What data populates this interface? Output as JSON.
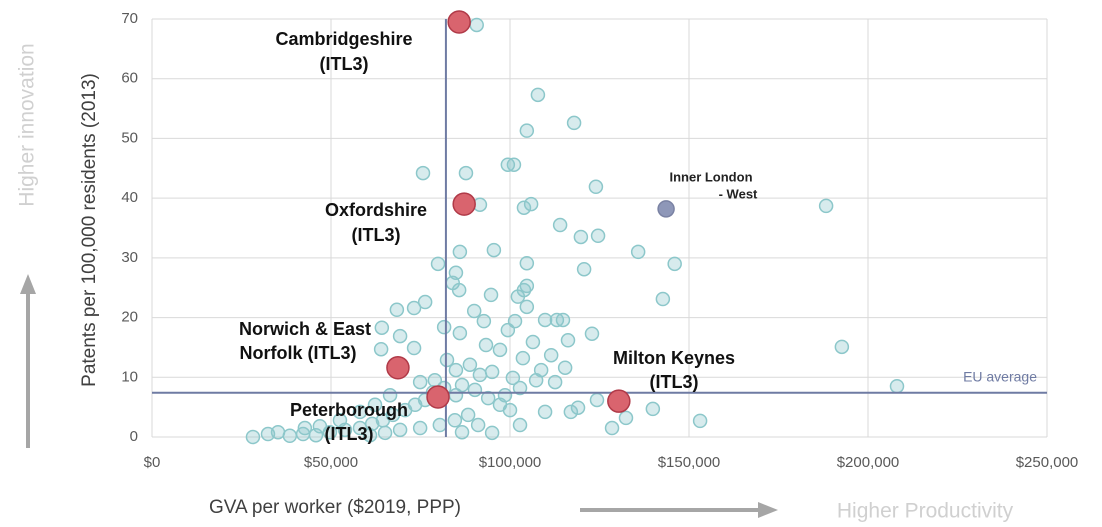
{
  "chart_data": {
    "type": "scatter",
    "x_label": "GVA per worker ($2019, PPP)",
    "y_label": "Patents per 100,000 residents (2013)",
    "x_direction_label": "Higher Productivity",
    "y_direction_label": "Higher innovation",
    "xlim": [
      0,
      250000
    ],
    "ylim": [
      0,
      70
    ],
    "xticks": [
      {
        "value": 0,
        "label": "$0"
      },
      {
        "value": 50000,
        "label": "$50,000"
      },
      {
        "value": 100000,
        "label": "$100,000"
      },
      {
        "value": 150000,
        "label": "$150,000"
      },
      {
        "value": 200000,
        "label": "$200,000"
      },
      {
        "value": 250000,
        "label": "$250,000"
      }
    ],
    "yticks": [
      0,
      10,
      20,
      30,
      40,
      50,
      60,
      70
    ],
    "grid": true,
    "series": [
      {
        "color": "#8cc7ca",
        "x": [
          90700,
          107800,
          117900,
          104700,
          99400,
          101100,
          87700,
          75700,
          124000,
          91600,
          105900,
          103900,
          188300,
          114000,
          124600,
          119800,
          95500,
          86000,
          135800,
          79900,
          104700,
          146000,
          120700,
          84900,
          84000,
          104700,
          85800,
          103900,
          94700,
          102200,
          142700,
          76300,
          73200,
          68400,
          90000,
          104700,
          81600,
          64200,
          92700,
          101400,
          109800,
          113100,
          114800,
          122900,
          99400,
          86000,
          69300,
          73200,
          64000,
          192700,
          116200,
          106400,
          93300,
          97200,
          103600,
          111500,
          115400,
          108700,
          82400,
          88800,
          95000,
          100800,
          107300,
          112600,
          208100,
          124300,
          139900,
          153100,
          128500,
          132400,
          117000,
          119000,
          109800,
          102800,
          95000,
          28200,
          32400,
          35200,
          38500,
          42200,
          45800,
          49700,
          53900,
          58100,
          61500,
          64500,
          67300,
          70700,
          73500,
          76300,
          78500,
          81600,
          84900,
          86600,
          90200,
          93900,
          97200,
          100000,
          88300,
          84600,
          80400,
          74900,
          69300,
          65100,
          60900,
          91100,
          86600,
          98600,
          102800,
          91600,
          84900,
          79000,
          74900,
          66500,
          62300,
          58100,
          52500,
          46900,
          42700
        ],
        "values": [
          69,
          57.3,
          52.6,
          51.3,
          45.6,
          45.6,
          44.2,
          44.2,
          41.9,
          38.9,
          39,
          38.4,
          38.7,
          35.5,
          33.7,
          33.5,
          31.3,
          31,
          31,
          29,
          29.1,
          29,
          28.1,
          27.5,
          25.8,
          25.3,
          24.6,
          24.6,
          23.8,
          23.5,
          23.1,
          22.6,
          21.6,
          21.3,
          21.1,
          21.8,
          18.4,
          18.3,
          19.4,
          19.4,
          19.6,
          19.6,
          19.6,
          17.3,
          17.9,
          17.4,
          16.9,
          14.9,
          14.7,
          15.1,
          16.2,
          15.9,
          15.4,
          14.6,
          13.2,
          13.7,
          11.6,
          11.2,
          12.9,
          12.1,
          10.9,
          9.9,
          9.5,
          9.2,
          8.5,
          6.2,
          4.7,
          2.7,
          1.5,
          3.2,
          4.2,
          4.9,
          4.2,
          2,
          0.7,
          0,
          0.5,
          0.8,
          0.2,
          0.5,
          0.3,
          0.8,
          1.2,
          1.5,
          2.2,
          2.8,
          3.7,
          4.5,
          5.4,
          6.2,
          7.5,
          8.2,
          7,
          8.7,
          7.9,
          6.5,
          5.4,
          4.5,
          3.7,
          2.8,
          2,
          1.5,
          1.2,
          0.7,
          0.3,
          2,
          0.8,
          7,
          8.2,
          10.4,
          11.2,
          9.5,
          9.2,
          7,
          5.4,
          4.2,
          2.8,
          1.8,
          1.5
        ]
      }
    ],
    "highlights": [
      {
        "lines": [
          "Cambridgeshire",
          "(ITL3)"
        ],
        "x": 85800,
        "y": 69.5,
        "color": "#d9646e"
      },
      {
        "lines": [
          "Oxfordshire",
          "(ITL3)"
        ],
        "x": 87200,
        "y": 39,
        "color": "#d9646e"
      },
      {
        "lines": [
          "Norwich & East",
          "Norfolk (ITL3)"
        ],
        "x": 68700,
        "y": 11.6,
        "color": "#d9646e"
      },
      {
        "lines": [
          "Peterborough",
          "(ITL3)"
        ],
        "x": 79900,
        "y": 6.7,
        "color": "#d9646e"
      },
      {
        "lines": [
          "Milton  Keynes",
          "(ITL3)"
        ],
        "x": 130400,
        "y": 6,
        "color": "#d9646e"
      },
      {
        "lines": [
          "Inner London",
          "- West"
        ],
        "x": 143600,
        "y": 38.2,
        "color": "#8e97b8"
      }
    ],
    "reference_x": 82100,
    "reference_y": {
      "value": 7.4,
      "label": "EU average"
    },
    "reference_color": "#6f7ba3"
  }
}
